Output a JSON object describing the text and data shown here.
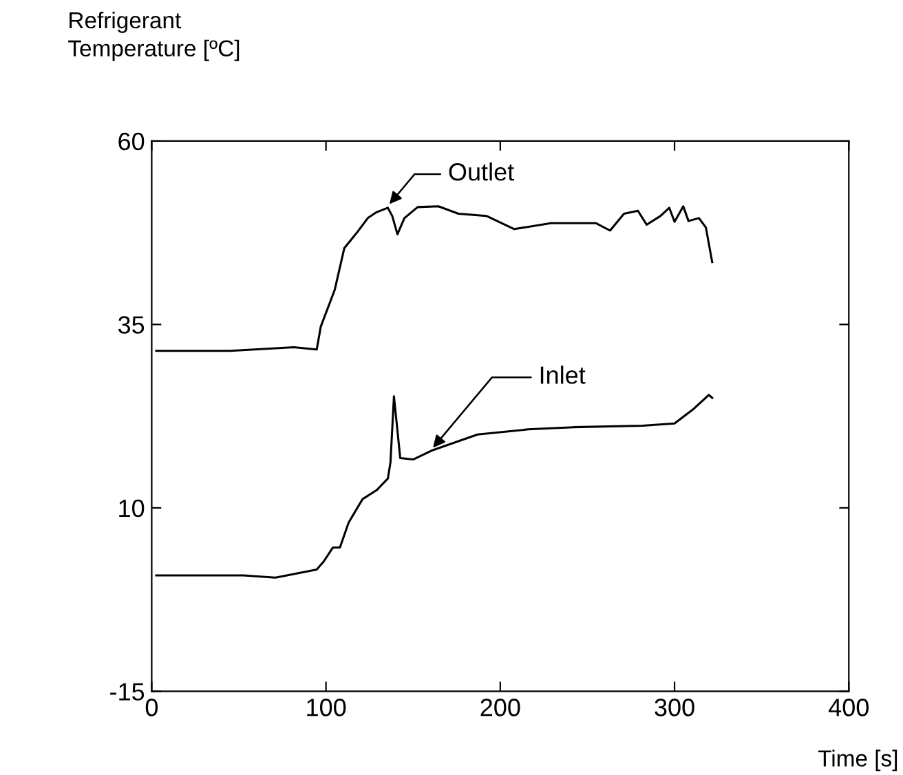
{
  "chart_data": {
    "type": "line",
    "ylabel": "Refrigerant\nTemperature [ºC]",
    "xlabel": "Time [s]",
    "xlim": [
      0,
      400
    ],
    "xticks": [
      0,
      100,
      200,
      300,
      400
    ],
    "ylim": [
      -15,
      60
    ],
    "yticks": [
      -15,
      10,
      35,
      60
    ],
    "grid": false,
    "marker": "none",
    "line_style": "solid",
    "series": [
      {
        "color": "#000000",
        "x": [
          2.6,
          45,
          81.6,
          94.7,
          97,
          105,
          110.5,
          118,
          124,
          129,
          135.5,
          138,
          141,
          145,
          152.6,
          164.5,
          176,
          192,
          208,
          229,
          255,
          263,
          271,
          279,
          284,
          292,
          297,
          300,
          305,
          308,
          314,
          318,
          321.6
        ],
        "values": [
          31.4,
          31.4,
          31.9,
          31.6,
          34.7,
          39.7,
          45.4,
          47.6,
          49.5,
          50.3,
          50.9,
          49.8,
          47.3,
          49.5,
          51.0,
          51.1,
          50.1,
          49.8,
          48.0,
          48.8,
          48.8,
          47.8,
          50.1,
          50.5,
          48.6,
          49.8,
          50.9,
          49.0,
          51.1,
          49.1,
          49.5,
          48.2,
          43.5
        ]
      },
      {
        "color": "#000000",
        "x": [
          2.6,
          52.6,
          71,
          94.7,
          98.7,
          104,
          108,
          113,
          121,
          129,
          135.5,
          137,
          139,
          142.6,
          150,
          160.5,
          187,
          216,
          242,
          281.6,
          300,
          310.5,
          319.7,
          321.6
        ],
        "values": [
          0.8,
          0.8,
          0.5,
          1.6,
          2.7,
          4.6,
          4.6,
          8.0,
          11.2,
          12.4,
          14.0,
          16.2,
          25.2,
          16.8,
          16.6,
          17.8,
          20.0,
          20.7,
          21.0,
          21.2,
          21.5,
          23.4,
          25.4,
          25.0
        ]
      }
    ],
    "annotations": [
      {
        "text": "Outlet",
        "x": 135,
        "y": 51
      },
      {
        "text": "Inlet",
        "x": 160,
        "y": 17.8
      }
    ]
  }
}
